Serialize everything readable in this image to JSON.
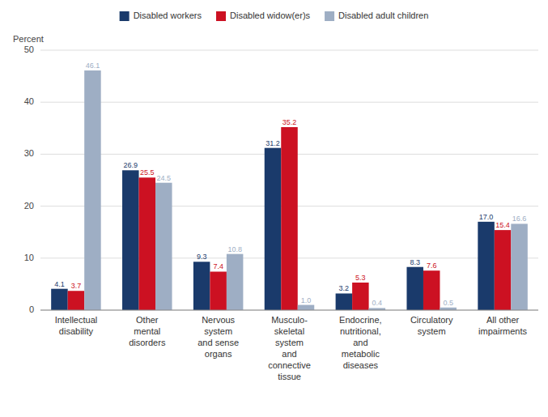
{
  "chart_data": {
    "type": "bar",
    "y_label": "Percent",
    "categories": [
      "Intellectual\ndisability",
      "Other\nmental\ndisorders",
      "Nervous\nsystem\nand sense\norgans",
      "Musculo-\nskeletal\nsystem\nand\nconnective\ntissue",
      "Endocrine,\nnutritional,\nand\nmetabolic\ndiseases",
      "Circulatory\nsystem",
      "All other\nimpairments"
    ],
    "series": [
      {
        "name": "Disabled workers",
        "color": "#1a3a6b",
        "values": [
          4.1,
          26.9,
          9.3,
          31.2,
          3.2,
          8.3,
          17.0
        ],
        "value_labels": [
          "4.1",
          "26.9",
          "9.3",
          "31.2",
          "3.2",
          "8.3",
          "17.0"
        ]
      },
      {
        "name": "Disabled widow(er)s",
        "color": "#cc1122",
        "values": [
          3.7,
          25.5,
          7.4,
          35.2,
          5.3,
          7.6,
          15.4
        ],
        "value_labels": [
          "3.7",
          "25.5",
          "7.4",
          "35.2",
          "5.3",
          "7.6",
          "15.4"
        ]
      },
      {
        "name": "Disabled adult children",
        "color": "#9eaec4",
        "values": [
          46.1,
          24.5,
          10.8,
          1.0,
          0.4,
          0.5,
          16.6
        ],
        "value_labels": [
          "46.1",
          "24.5",
          "10.8",
          "1.0",
          "0.4",
          "0.5",
          "16.6"
        ]
      }
    ],
    "ylim": [
      0,
      50
    ],
    "yticks": [
      0,
      10,
      20,
      30,
      40,
      50
    ],
    "grid": true,
    "data_labels": true,
    "legend": "top"
  }
}
